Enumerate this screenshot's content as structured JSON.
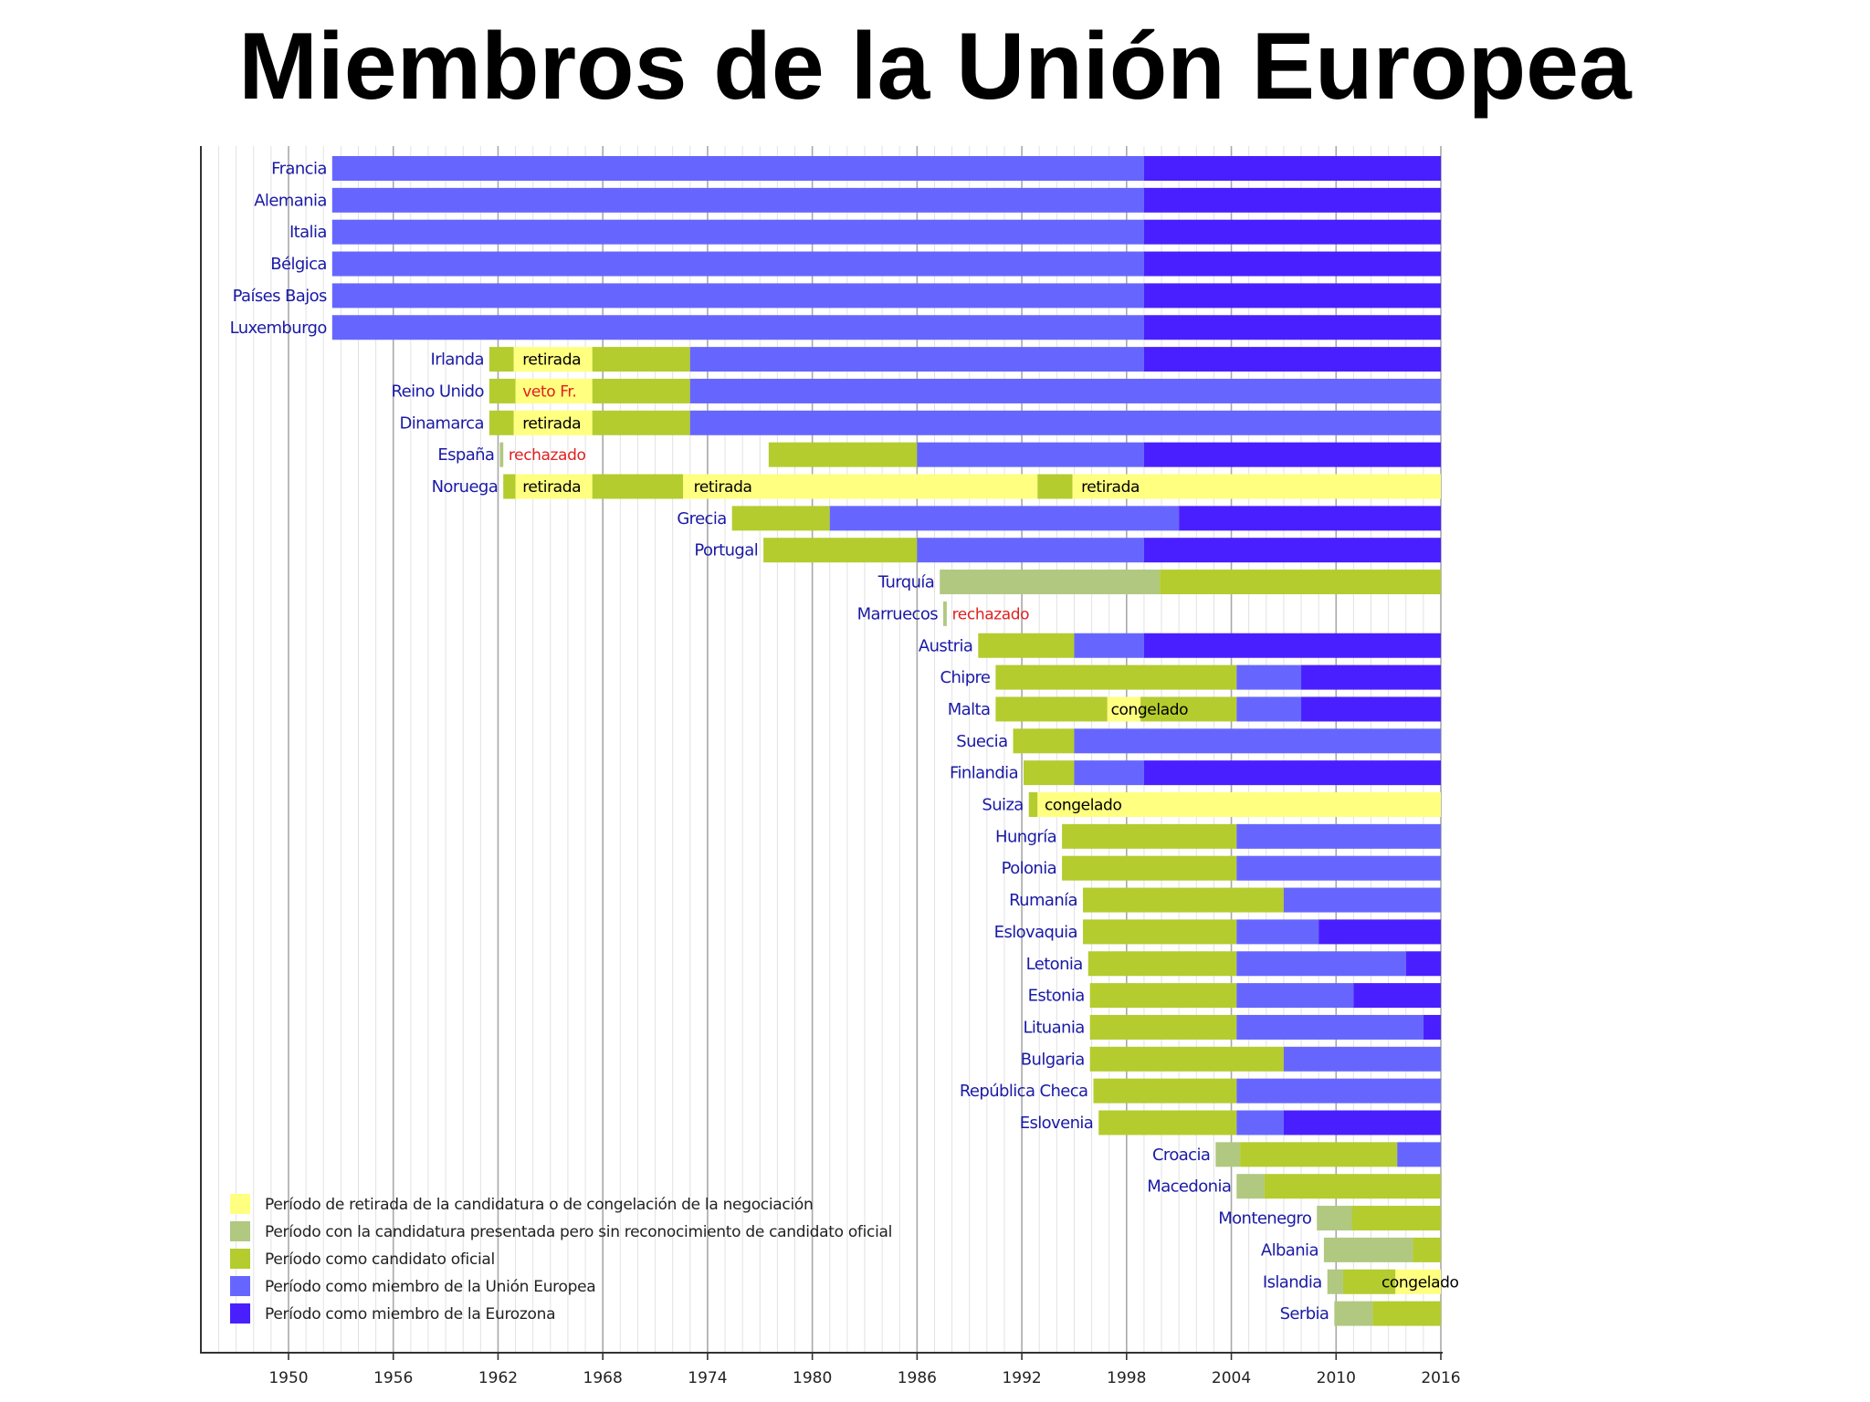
{
  "title": "Miembros de la Unión Europea",
  "chart_data": {
    "type": "timeline-bar",
    "xlim": [
      1937,
      2016
    ],
    "x_ticks": [
      1950,
      1956,
      1962,
      1968,
      1974,
      1980,
      1986,
      1992,
      1998,
      2004,
      2010,
      2016
    ],
    "colors": {
      "yellow": "#ffff80",
      "grey": "#b0c880",
      "green": "#b4cc2e",
      "blue": "#6666ff",
      "euro": "#4a1fff",
      "country_label": "#1a1aa6",
      "note_red": "#e02020",
      "note_black": "#000000"
    },
    "legend": [
      {
        "color": "yellow",
        "label": "Período de retirada de la candidatura o de congelación de la negociación"
      },
      {
        "color": "grey",
        "label": "Período con la candidatura presentada pero sin reconocimiento de candidato oficial"
      },
      {
        "color": "green",
        "label": "Período como candidato oficial"
      },
      {
        "color": "blue",
        "label": "Período como miembro de la Unión Europea"
      },
      {
        "color": "euro",
        "label": "Período como miembro de la Eurozona"
      }
    ],
    "rows": [
      {
        "country": "Francia",
        "segments": [
          [
            1952.5,
            1999,
            "blue"
          ],
          [
            1999,
            2016,
            "euro"
          ]
        ]
      },
      {
        "country": "Alemania",
        "segments": [
          [
            1952.5,
            1999,
            "blue"
          ],
          [
            1999,
            2016,
            "euro"
          ]
        ]
      },
      {
        "country": "Italia",
        "segments": [
          [
            1952.5,
            1999,
            "blue"
          ],
          [
            1999,
            2016,
            "euro"
          ]
        ]
      },
      {
        "country": "Bélgica",
        "segments": [
          [
            1952.5,
            1999,
            "blue"
          ],
          [
            1999,
            2016,
            "euro"
          ]
        ]
      },
      {
        "country": "Países Bajos",
        "segments": [
          [
            1952.5,
            1999,
            "blue"
          ],
          [
            1999,
            2016,
            "euro"
          ]
        ]
      },
      {
        "country": "Luxemburgo",
        "segments": [
          [
            1952.5,
            1999,
            "blue"
          ],
          [
            1999,
            2016,
            "euro"
          ]
        ]
      },
      {
        "country": "Irlanda",
        "segments": [
          [
            1961.5,
            1962.9,
            "green"
          ],
          [
            1962.9,
            1967.4,
            "yellow"
          ],
          [
            1967.4,
            1973,
            "green"
          ],
          [
            1973,
            1999,
            "blue"
          ],
          [
            1999,
            2016,
            "euro"
          ]
        ],
        "notes": [
          {
            "x": 1963.4,
            "text": "retirada",
            "color": "note_black"
          }
        ]
      },
      {
        "country": "Reino Unido",
        "segments": [
          [
            1961.5,
            1963,
            "green"
          ],
          [
            1963,
            1967.4,
            "yellow"
          ],
          [
            1967.4,
            1973,
            "green"
          ],
          [
            1973,
            2016,
            "blue"
          ]
        ],
        "notes": [
          {
            "x": 1963.4,
            "text": "veto Fr.",
            "color": "note_red"
          }
        ]
      },
      {
        "country": "Dinamarca",
        "segments": [
          [
            1961.5,
            1962.9,
            "green"
          ],
          [
            1962.9,
            1967.4,
            "yellow"
          ],
          [
            1967.4,
            1973,
            "green"
          ],
          [
            1973,
            2016,
            "blue"
          ]
        ],
        "notes": [
          {
            "x": 1963.4,
            "text": "retirada",
            "color": "note_black"
          }
        ]
      },
      {
        "country": "España",
        "segments": [
          [
            1962.1,
            1962.3,
            "grey"
          ],
          [
            1977.5,
            1986,
            "green"
          ],
          [
            1986,
            1999,
            "blue"
          ],
          [
            1999,
            2016,
            "euro"
          ]
        ],
        "notes": [
          {
            "x": 1962.6,
            "text": "rechazado",
            "color": "note_red"
          }
        ]
      },
      {
        "country": "Noruega",
        "segments": [
          [
            1962.3,
            1963,
            "green"
          ],
          [
            1963,
            1967.4,
            "yellow"
          ],
          [
            1967.4,
            1972.6,
            "green"
          ],
          [
            1972.6,
            1992.9,
            "yellow"
          ],
          [
            1992.9,
            1994.9,
            "green"
          ],
          [
            1994.9,
            2016,
            "yellow"
          ]
        ],
        "notes": [
          {
            "x": 1963.4,
            "text": "retirada",
            "color": "note_black"
          },
          {
            "x": 1973.2,
            "text": "retirada",
            "color": "note_black"
          },
          {
            "x": 1995.4,
            "text": "retirada",
            "color": "note_black"
          }
        ]
      },
      {
        "country": "Grecia",
        "segments": [
          [
            1975.4,
            1981,
            "green"
          ],
          [
            1981,
            2001,
            "blue"
          ],
          [
            2001,
            2016,
            "euro"
          ]
        ]
      },
      {
        "country": "Portugal",
        "segments": [
          [
            1977.2,
            1986,
            "green"
          ],
          [
            1986,
            1999,
            "blue"
          ],
          [
            1999,
            2016,
            "euro"
          ]
        ]
      },
      {
        "country": "Turquía",
        "segments": [
          [
            1987.3,
            1999.9,
            "grey"
          ],
          [
            1999.9,
            2016,
            "green"
          ]
        ]
      },
      {
        "country": "Marruecos",
        "segments": [
          [
            1987.5,
            1987.7,
            "grey"
          ]
        ],
        "notes": [
          {
            "x": 1988.0,
            "text": "rechazado",
            "color": "note_red"
          }
        ]
      },
      {
        "country": "Austria",
        "segments": [
          [
            1989.5,
            1995,
            "green"
          ],
          [
            1995,
            1999,
            "blue"
          ],
          [
            1999,
            2016,
            "euro"
          ]
        ]
      },
      {
        "country": "Chipre",
        "segments": [
          [
            1990.5,
            2004.3,
            "green"
          ],
          [
            2004.3,
            2008,
            "blue"
          ],
          [
            2008,
            2016,
            "euro"
          ]
        ]
      },
      {
        "country": "Malta",
        "segments": [
          [
            1990.5,
            1996.9,
            "green"
          ],
          [
            1996.9,
            1998.8,
            "yellow"
          ],
          [
            1998.8,
            2004.3,
            "green"
          ],
          [
            2004.3,
            2008,
            "blue"
          ],
          [
            2008,
            2016,
            "euro"
          ]
        ],
        "notes": [
          {
            "x": 1997.1,
            "text": "congelado",
            "color": "note_black"
          }
        ]
      },
      {
        "country": "Suecia",
        "segments": [
          [
            1991.5,
            1995,
            "green"
          ],
          [
            1995,
            2016,
            "blue"
          ]
        ]
      },
      {
        "country": "Finlandia",
        "segments": [
          [
            1992.1,
            1995,
            "green"
          ],
          [
            1995,
            1999,
            "blue"
          ],
          [
            1999,
            2016,
            "euro"
          ]
        ]
      },
      {
        "country": "Suiza",
        "segments": [
          [
            1992.4,
            1992.9,
            "green"
          ],
          [
            1992.9,
            2016,
            "yellow"
          ]
        ],
        "notes": [
          {
            "x": 1993.3,
            "text": "congelado",
            "color": "note_black"
          }
        ]
      },
      {
        "country": "Hungría",
        "segments": [
          [
            1994.3,
            2004.3,
            "green"
          ],
          [
            2004.3,
            2016,
            "blue"
          ]
        ]
      },
      {
        "country": "Polonia",
        "segments": [
          [
            1994.3,
            2004.3,
            "green"
          ],
          [
            2004.3,
            2016,
            "blue"
          ]
        ]
      },
      {
        "country": "Rumanía",
        "segments": [
          [
            1995.5,
            2007,
            "green"
          ],
          [
            2007,
            2016,
            "blue"
          ]
        ]
      },
      {
        "country": "Eslovaquia",
        "segments": [
          [
            1995.5,
            2004.3,
            "green"
          ],
          [
            2004.3,
            2009,
            "blue"
          ],
          [
            2009,
            2016,
            "euro"
          ]
        ]
      },
      {
        "country": "Letonia",
        "segments": [
          [
            1995.8,
            2004.3,
            "green"
          ],
          [
            2004.3,
            2014,
            "blue"
          ],
          [
            2014,
            2016,
            "euro"
          ]
        ]
      },
      {
        "country": "Estonia",
        "segments": [
          [
            1995.9,
            2004.3,
            "green"
          ],
          [
            2004.3,
            2011,
            "blue"
          ],
          [
            2011,
            2016,
            "euro"
          ]
        ]
      },
      {
        "country": "Lituania",
        "segments": [
          [
            1995.9,
            2004.3,
            "green"
          ],
          [
            2004.3,
            2015,
            "blue"
          ],
          [
            2015,
            2016,
            "euro"
          ]
        ]
      },
      {
        "country": "Bulgaria",
        "segments": [
          [
            1995.9,
            2007,
            "green"
          ],
          [
            2007,
            2016,
            "blue"
          ]
        ]
      },
      {
        "country": "República Checa",
        "segments": [
          [
            1996.1,
            2004.3,
            "green"
          ],
          [
            2004.3,
            2016,
            "blue"
          ]
        ]
      },
      {
        "country": "Eslovenia",
        "segments": [
          [
            1996.4,
            2004.3,
            "green"
          ],
          [
            2004.3,
            2007,
            "blue"
          ],
          [
            2007,
            2016,
            "euro"
          ]
        ]
      },
      {
        "country": "Croacia",
        "segments": [
          [
            2003.1,
            2004.5,
            "grey"
          ],
          [
            2004.5,
            2013.5,
            "green"
          ],
          [
            2013.5,
            2016,
            "blue"
          ]
        ]
      },
      {
        "country": "Macedonia",
        "segments": [
          [
            2004.3,
            2005.9,
            "grey"
          ],
          [
            2005.9,
            2016,
            "green"
          ]
        ]
      },
      {
        "country": "Montenegro",
        "segments": [
          [
            2008.9,
            2010.9,
            "grey"
          ],
          [
            2010.9,
            2016,
            "green"
          ]
        ]
      },
      {
        "country": "Albania",
        "segments": [
          [
            2009.3,
            2014.4,
            "grey"
          ],
          [
            2014.4,
            2016,
            "green"
          ]
        ]
      },
      {
        "country": "Islandia",
        "segments": [
          [
            2009.5,
            2010.4,
            "grey"
          ],
          [
            2010.4,
            2013.4,
            "green"
          ],
          [
            2013.4,
            2016,
            "yellow"
          ]
        ],
        "notes": [
          {
            "x": 2012.6,
            "text": "congelado",
            "color": "note_black"
          }
        ]
      },
      {
        "country": "Serbia",
        "segments": [
          [
            2009.9,
            2012.1,
            "grey"
          ],
          [
            2012.1,
            2016,
            "green"
          ]
        ]
      }
    ]
  }
}
